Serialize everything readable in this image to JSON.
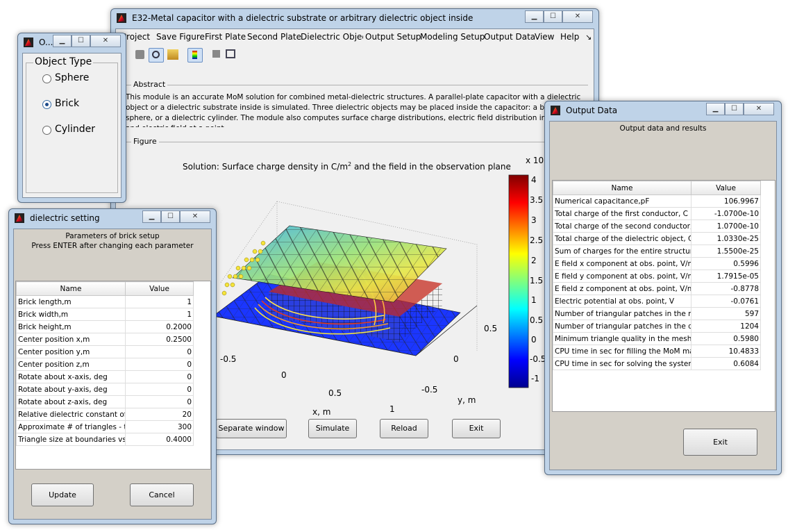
{
  "main": {
    "title": "E32-Metal capacitor with a dielectric substrate or arbitrary dielectric object inside",
    "menu": [
      "Project",
      "Save Figure",
      "First Plate",
      "Second Plate",
      "Dielectric Object",
      "Output Setup",
      "Modeling Setup",
      "Output Data",
      "View",
      "Help"
    ],
    "menu_overflow": "↘",
    "abstract_label": "Abstract",
    "abstract_text": "This module is an accurate MoM solution for combined metal-dielectric structures. A parallel-plate capacitor with a dielectric object or a dielectric substrate inside is simulated. Three dielectric objects may be placed inside the capacitor: a brick, a sphere, or a dielectric cylinder. The module also computes surface charge distributions, electric field distribution in a plane, and electric field at a point.",
    "figure_label": "Figure",
    "buttons": {
      "separate": "Separate window",
      "simulate": "Simulate",
      "reload": "Reload",
      "exit": "Exit"
    }
  },
  "chart": {
    "title": "Solution: Surface charge density in C/m",
    "title_sup": "2",
    "title_tail": " and the field in the observation plane",
    "xlabel": "x, m",
    "ylabel": "y, m",
    "x_ticks": [
      "-0.5",
      "0",
      "0.5",
      "1"
    ],
    "y_ticks": [
      "0.5",
      "0",
      "-0.5"
    ],
    "colorbar_ticks": [
      "4",
      "3.5",
      "3",
      "2.5",
      "2",
      "1.5",
      "1",
      "0.5",
      "0",
      "-0.5",
      "-1"
    ],
    "colorbar_exp": "x 10"
  },
  "object_type": {
    "title": "O...",
    "group": "Object Type",
    "options": [
      "Sphere",
      "Brick",
      "Cylinder"
    ],
    "selected": "Brick"
  },
  "dielectric": {
    "title": "dielectric setting",
    "header1": "Parameters of brick setup",
    "header2": "Press ENTER after changing each parameter",
    "col_name": "Name",
    "col_value": "Value",
    "rows": [
      [
        "Brick length,m",
        "1"
      ],
      [
        "Brick width,m",
        "1"
      ],
      [
        "Brick height,m",
        "0.2000"
      ],
      [
        "Center position x,m",
        "0.2500"
      ],
      [
        "Center position y,m",
        "0"
      ],
      [
        "Center position z,m",
        "0"
      ],
      [
        "Rotate about x-axis, deg",
        "0"
      ],
      [
        "Rotate about y-axis, deg",
        "0"
      ],
      [
        "Rotate about z-axis, deg",
        "0"
      ],
      [
        "Relative dielectric constant of ...",
        "20"
      ],
      [
        "Approximate # of triangles - t...",
        "300"
      ],
      [
        "Triangle size at boundaries vs...",
        "0.4000"
      ]
    ],
    "update": "Update",
    "cancel": "Cancel"
  },
  "output": {
    "title": "Output Data",
    "header": "Output data and results",
    "col_name": "Name",
    "col_value": "Value",
    "rows": [
      [
        "Numerical capacitance,pF",
        "106.9967"
      ],
      [
        "Total charge of the first conductor, C",
        "-1.0700e-10"
      ],
      [
        "Total charge of the second conductor, C",
        "1.0700e-10"
      ],
      [
        "Total charge of the dielectric object, C",
        "1.0330e-25"
      ],
      [
        "Sum of charges for the entire structur...",
        "1.5500e-25"
      ],
      [
        "E field x component at obs. point, V/m",
        "0.5996"
      ],
      [
        "E field y component at obs. point, V/m",
        "1.7915e-05"
      ],
      [
        "E field z component at obs. point, V/m",
        "-0.8778"
      ],
      [
        "Electric potential at obs. point, V",
        "-0.0761"
      ],
      [
        "Number of triangular patches in the me...",
        "597"
      ],
      [
        "Number of triangular patches in the diel...",
        "1204"
      ],
      [
        "Minimum triangle quality in the mesh",
        "0.5980"
      ],
      [
        "CPU time in sec for filling the MoM matrix",
        "10.4833"
      ],
      [
        "CPU time in sec for solving the system ...",
        "0.6084"
      ]
    ],
    "exit": "Exit"
  }
}
